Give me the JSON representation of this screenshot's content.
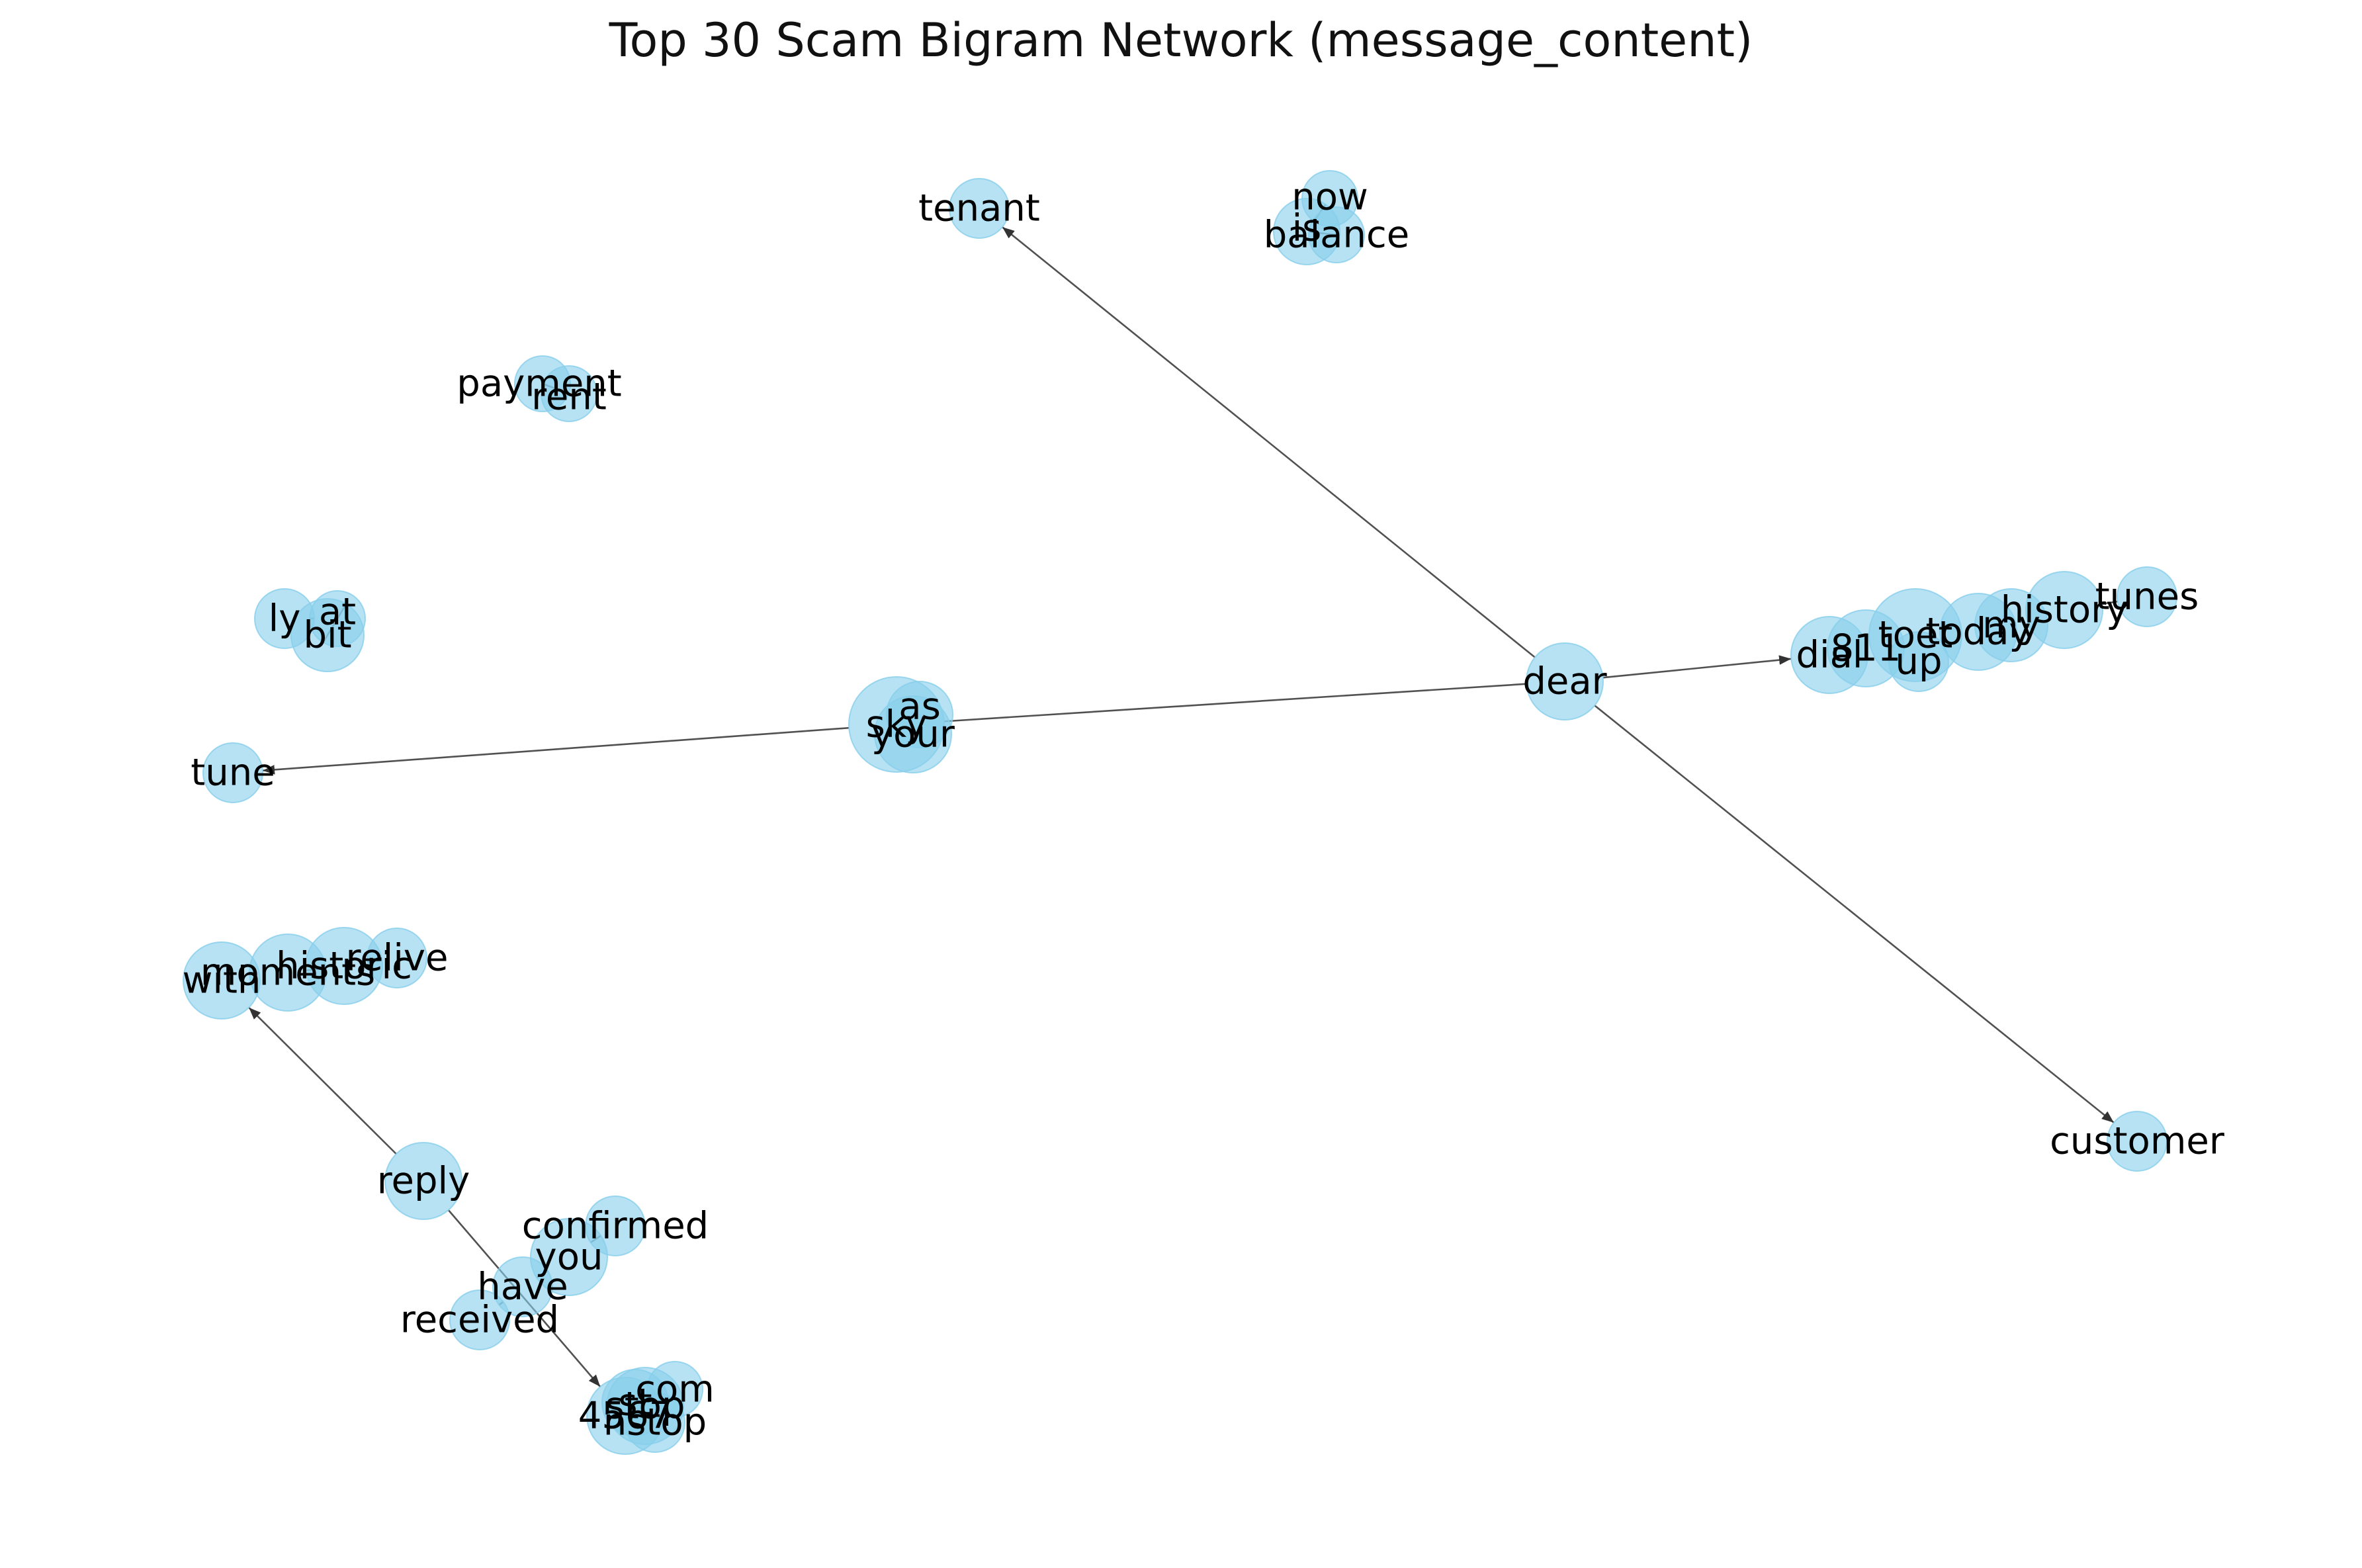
{
  "title": "Top 30 Scam Bigram Network (message_content)",
  "colors": {
    "node": "#87ceeb",
    "edge": "#333333"
  },
  "nodes": [
    {
      "id": "tenant",
      "label": "tenant"
    },
    {
      "id": "now",
      "label": "now"
    },
    {
      "id": "is",
      "label": "is"
    },
    {
      "id": "balance",
      "label": "balance"
    },
    {
      "id": "payment",
      "label": "payment"
    },
    {
      "id": "rent",
      "label": "rent"
    },
    {
      "id": "ly",
      "label": "ly"
    },
    {
      "id": "at",
      "label": "at"
    },
    {
      "id": "bit",
      "label": "bit"
    },
    {
      "id": "dear",
      "label": "dear"
    },
    {
      "id": "dial",
      "label": "dial"
    },
    {
      "id": "811",
      "label": "811"
    },
    {
      "id": "up",
      "label": "up"
    },
    {
      "id": "toet",
      "label": "toet"
    },
    {
      "id": "today",
      "label": "today"
    },
    {
      "id": "my",
      "label": "my"
    },
    {
      "id": "history",
      "label": "history"
    },
    {
      "id": "tunes",
      "label": "tunes"
    },
    {
      "id": "sky",
      "label": "sky"
    },
    {
      "id": "as",
      "label": "as"
    },
    {
      "id": "your",
      "label": "your"
    },
    {
      "id": "tune",
      "label": "tune"
    },
    {
      "id": "with",
      "label": "with"
    },
    {
      "id": "moments",
      "label": "moments"
    },
    {
      "id": "historic",
      "label": "historic"
    },
    {
      "id": "relive",
      "label": "relive"
    },
    {
      "id": "reply",
      "label": "reply"
    },
    {
      "id": "confirmed",
      "label": "confirmed"
    },
    {
      "id": "you",
      "label": "you"
    },
    {
      "id": "have",
      "label": "have"
    },
    {
      "id": "received",
      "label": "received"
    },
    {
      "id": "com",
      "label": "com"
    },
    {
      "id": "stop",
      "label": "stop"
    },
    {
      "id": "4567",
      "label": "4567"
    },
    {
      "id": "st",
      "label": "st"
    },
    {
      "id": "nstop",
      "label": "nstop"
    },
    {
      "id": "customer",
      "label": "customer"
    }
  ],
  "edges": [
    {
      "source": "dear",
      "target": "tenant",
      "arrow": true
    },
    {
      "source": "dear",
      "target": "customer",
      "arrow": true
    },
    {
      "source": "dear",
      "target": "dial",
      "arrow": true
    },
    {
      "source": "dear",
      "target": "sky",
      "arrow": false
    },
    {
      "source": "sky",
      "target": "tune",
      "arrow": true
    },
    {
      "source": "reply",
      "target": "with",
      "arrow": true
    },
    {
      "source": "reply",
      "target": "4567",
      "arrow": true
    },
    {
      "source": "history",
      "target": "tunes",
      "arrow": false
    },
    {
      "source": "now",
      "target": "is",
      "arrow": false
    },
    {
      "source": "is",
      "target": "balance",
      "arrow": false
    },
    {
      "source": "payment",
      "target": "rent",
      "arrow": false
    },
    {
      "source": "ly",
      "target": "at",
      "arrow": false
    },
    {
      "source": "at",
      "target": "bit",
      "arrow": false
    },
    {
      "source": "moments",
      "target": "historic",
      "arrow": false
    },
    {
      "source": "historic",
      "target": "relive",
      "arrow": false
    },
    {
      "source": "have",
      "target": "received",
      "arrow": false
    },
    {
      "source": "you",
      "target": "have",
      "arrow": false
    },
    {
      "source": "confirmed",
      "target": "you",
      "arrow": false
    }
  ]
}
